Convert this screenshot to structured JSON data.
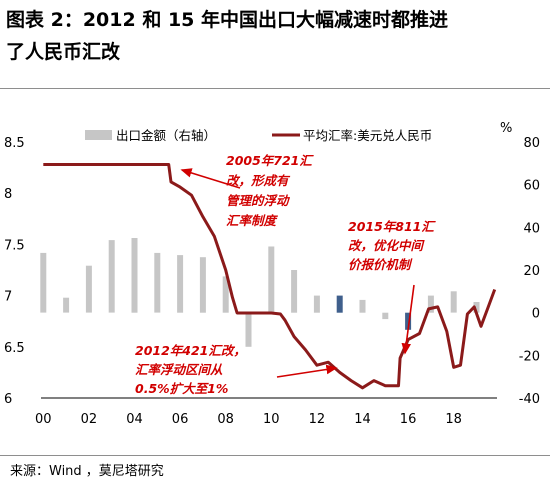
{
  "figure": {
    "title_line1": "图表 2：2012 和 15 年中国出口大幅减速时都推进",
    "title_line2": "了人民币汇改",
    "source": "来源：Wind ，莫尼塔研究"
  },
  "chart_data": {
    "type": "bar+line",
    "colors": {
      "bars": "#c6c6c6",
      "bars_highlight": "#3f5f8c",
      "line": "#8b1a1a",
      "annotation": "#d10000"
    },
    "legend": [
      "出口金额（右轴）",
      "平均汇率:美元兑人民币"
    ],
    "legend_placement": "top",
    "right_axis_unit": "%",
    "x_ticks": [
      "00",
      "02",
      "04",
      "06",
      "08",
      "10",
      "12",
      "14",
      "16",
      "18"
    ],
    "xlim": [
      2000,
      2019.8
    ],
    "ylim_left": [
      6,
      8.5
    ],
    "left_ticks": [
      "6",
      "6.5",
      "7",
      "7.5",
      "8",
      "8.5"
    ],
    "ylim_right": [
      -40,
      80
    ],
    "right_ticks": [
      "-40",
      "-20",
      "0",
      "20",
      "40",
      "60",
      "80"
    ],
    "exports": {
      "x": [
        2000,
        2001,
        2002,
        2003,
        2004,
        2005,
        2006,
        2007,
        2008,
        2009,
        2010,
        2011,
        2012,
        2013,
        2014,
        2015,
        2016,
        2017,
        2018,
        2019
      ],
      "values": [
        28,
        7,
        22,
        34,
        35,
        28,
        27,
        26,
        17,
        -16,
        31,
        20,
        8,
        8,
        6,
        -3,
        -8,
        8,
        10,
        5
      ]
    },
    "exchange_rate": {
      "points": [
        [
          2000.0,
          8.28
        ],
        [
          2005.5,
          8.28
        ],
        [
          2005.6,
          8.11
        ],
        [
          2006.0,
          8.06
        ],
        [
          2006.5,
          7.98
        ],
        [
          2007.0,
          7.77
        ],
        [
          2007.5,
          7.58
        ],
        [
          2008.0,
          7.25
        ],
        [
          2008.3,
          6.98
        ],
        [
          2008.5,
          6.83
        ],
        [
          2009.0,
          6.83
        ],
        [
          2009.5,
          6.83
        ],
        [
          2010.0,
          6.83
        ],
        [
          2010.4,
          6.82
        ],
        [
          2010.6,
          6.76
        ],
        [
          2011.0,
          6.6
        ],
        [
          2011.5,
          6.47
        ],
        [
          2012.0,
          6.32
        ],
        [
          2012.5,
          6.35
        ],
        [
          2013.0,
          6.25
        ],
        [
          2013.5,
          6.17
        ],
        [
          2014.0,
          6.1
        ],
        [
          2014.5,
          6.17
        ],
        [
          2015.0,
          6.12
        ],
        [
          2015.58,
          6.12
        ],
        [
          2015.65,
          6.39
        ],
        [
          2016.0,
          6.57
        ],
        [
          2016.5,
          6.63
        ],
        [
          2016.9,
          6.87
        ],
        [
          2017.3,
          6.89
        ],
        [
          2017.7,
          6.65
        ],
        [
          2018.0,
          6.3
        ],
        [
          2018.3,
          6.32
        ],
        [
          2018.6,
          6.82
        ],
        [
          2018.9,
          6.89
        ],
        [
          2019.2,
          6.7
        ],
        [
          2019.5,
          6.88
        ],
        [
          2019.8,
          7.06
        ]
      ]
    },
    "annotations": [
      {
        "lines": [
          "2005年721汇",
          "改，形成有",
          "管理的浮动",
          "汇率制度"
        ]
      },
      {
        "lines": [
          "2012年421汇改，",
          "汇率浮动区间从",
          "0.5%扩大至1%"
        ]
      },
      {
        "lines": [
          "2015年811汇",
          "改，优化中间",
          "价报价机制"
        ]
      }
    ]
  }
}
